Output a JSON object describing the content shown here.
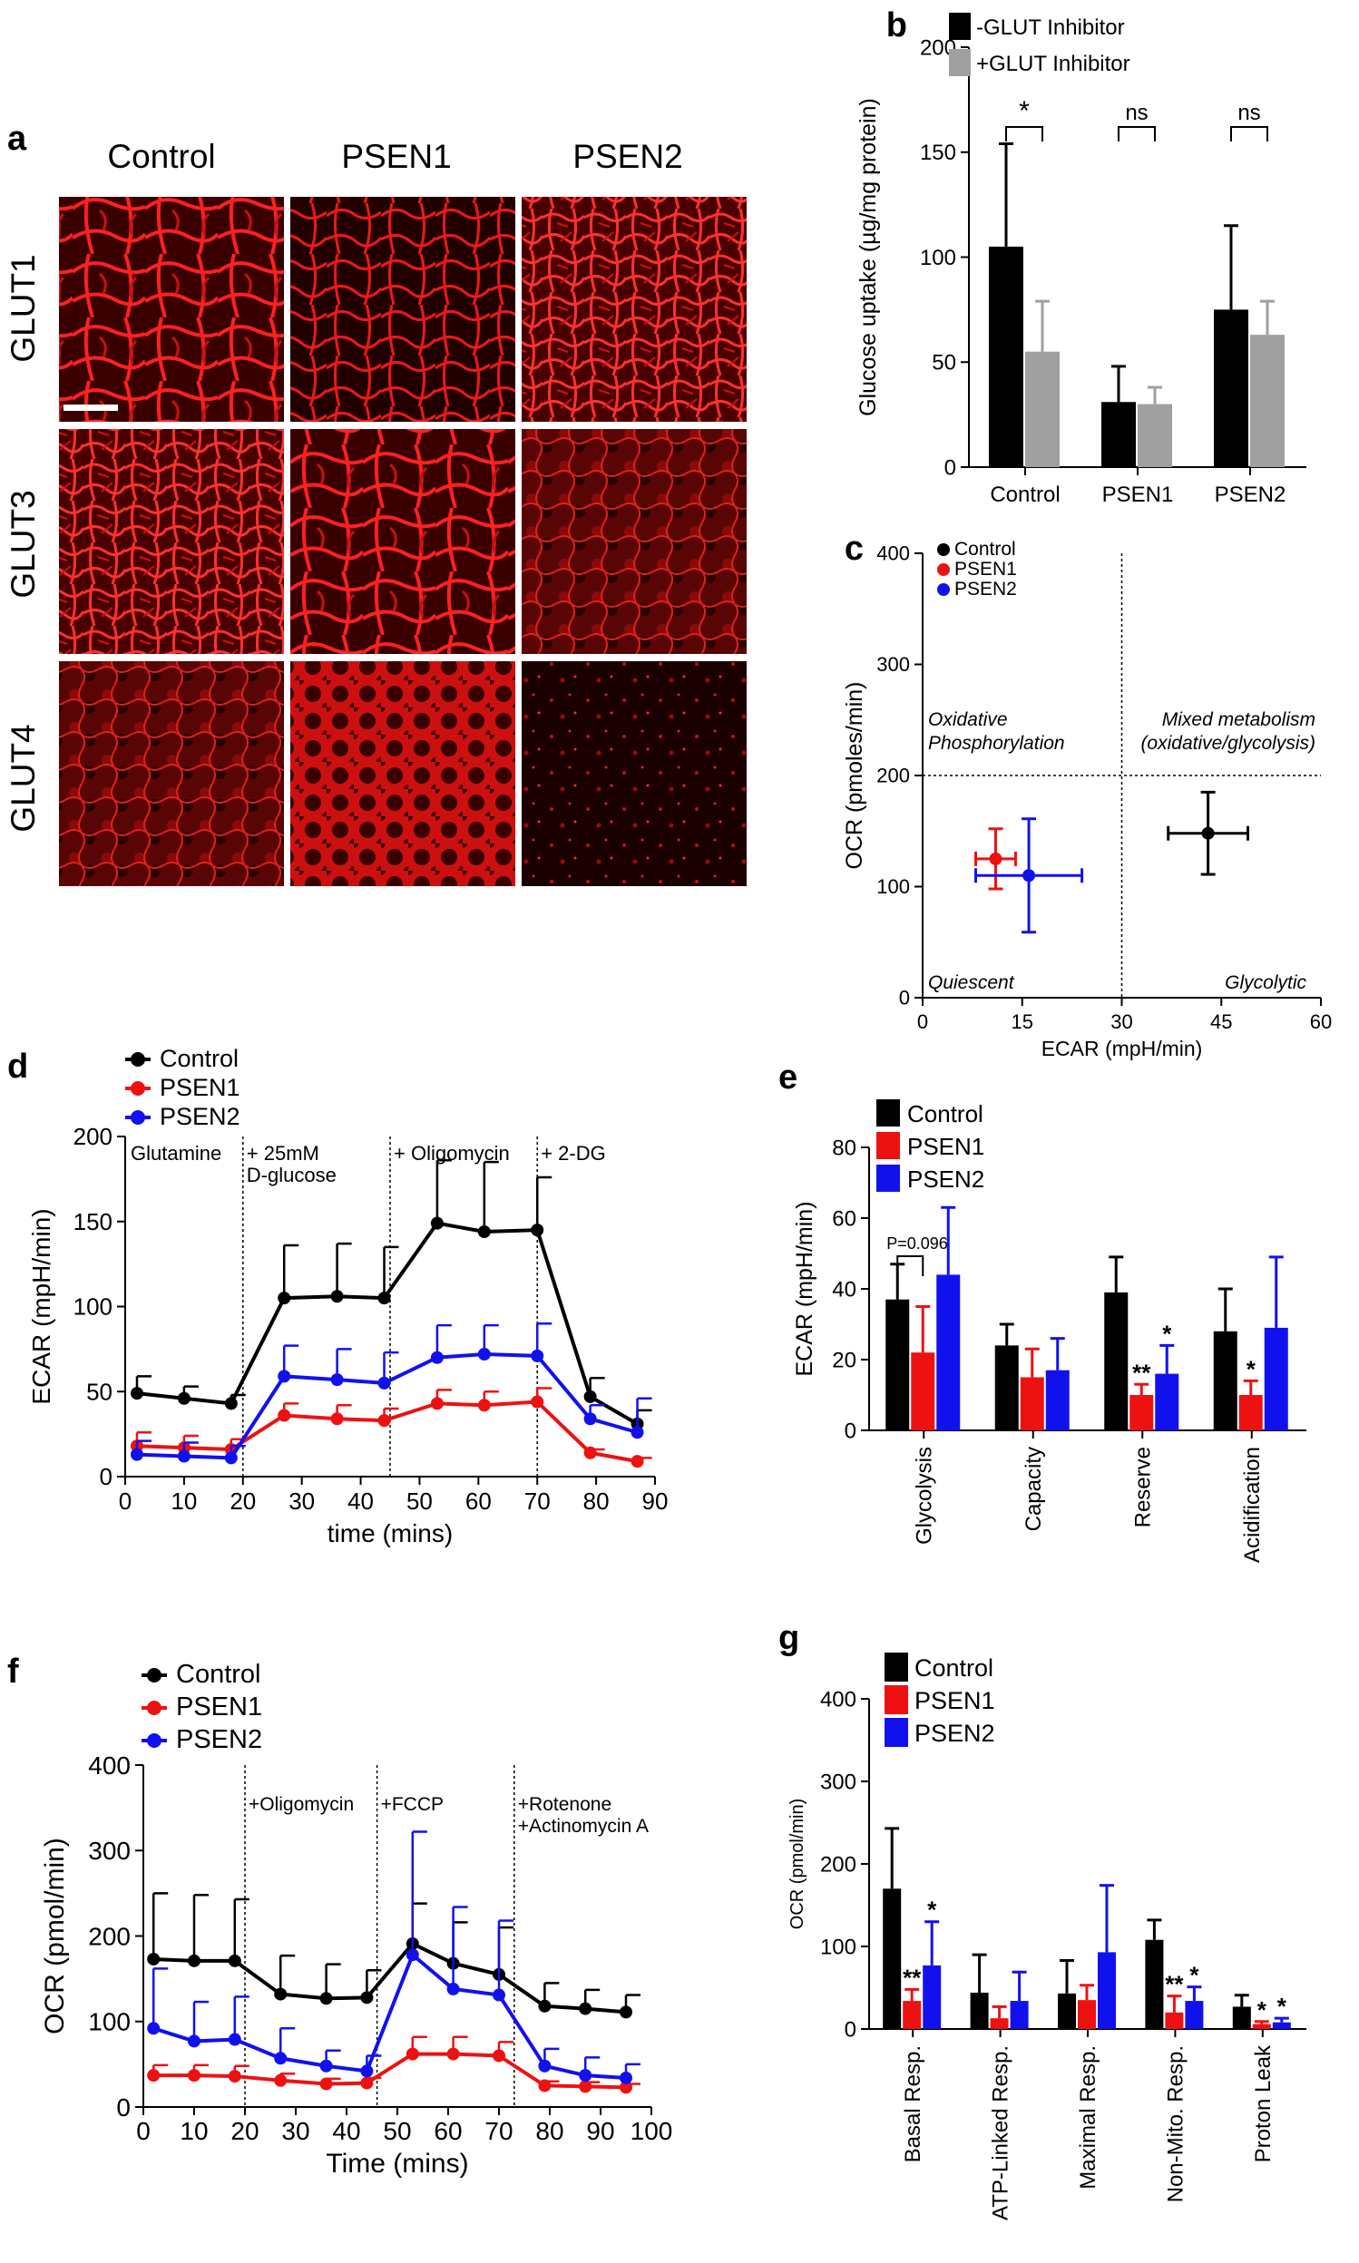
{
  "panels": {
    "a": {
      "label": "a",
      "columns": [
        "Control",
        "PSEN1",
        "PSEN2"
      ],
      "rows": [
        "GLUT1",
        "GLUT3",
        "GLUT4"
      ]
    }
  },
  "chart_data": [
    {
      "id": "b",
      "panel_label": "b",
      "type": "bar",
      "categories": [
        "Control",
        "PSEN1",
        "PSEN2"
      ],
      "series": [
        {
          "name": "-GLUT Inhibitor",
          "color": "#000000",
          "values": [
            105,
            31,
            75
          ],
          "errors": [
            49,
            17,
            40
          ]
        },
        {
          "name": "+GLUT Inhibitor",
          "color": "#a0a0a0",
          "values": [
            55,
            30,
            63
          ],
          "errors": [
            24,
            8,
            16
          ]
        }
      ],
      "ylabel": "Glucose uptake (µg/mg protein)",
      "xlabel": "",
      "ylim": [
        0,
        200
      ],
      "yticks": [
        0,
        50,
        100,
        150,
        200
      ],
      "annotations": [
        "*",
        "ns",
        "ns"
      ]
    },
    {
      "id": "c",
      "panel_label": "c",
      "type": "scatter",
      "series": [
        {
          "name": "Control",
          "color": "#000000",
          "x": 43,
          "y": 148,
          "xerr": 6,
          "yerr": 37
        },
        {
          "name": "PSEN1",
          "color": "#ee1111",
          "x": 11,
          "y": 125,
          "xerr": 3,
          "yerr": 27
        },
        {
          "name": "PSEN2",
          "color": "#1111ee",
          "x": 16,
          "y": 110,
          "xerr": 8,
          "yerr": 51
        }
      ],
      "xlabel": "ECAR (mpH/min)",
      "ylabel": "OCR (pmoles/min)",
      "xlim": [
        0,
        60
      ],
      "ylim": [
        0,
        400
      ],
      "xticks": [
        0,
        15,
        30,
        45,
        60
      ],
      "yticks": [
        0,
        100,
        200,
        300,
        400
      ],
      "quadrants": [
        "Oxidative",
        "Phosphorylation",
        "Mixed metabolism",
        "(oxidative/glycolysis)",
        "Quiescent",
        "Glycolytic"
      ]
    },
    {
      "id": "d",
      "panel_label": "d",
      "type": "line",
      "x": [
        2,
        10,
        18,
        27,
        36,
        44,
        53,
        61,
        70,
        79,
        87
      ],
      "series": [
        {
          "name": "Control",
          "color": "#000000",
          "values": [
            49,
            46,
            43,
            105,
            106,
            105,
            149,
            144,
            145,
            47,
            31
          ],
          "errors": [
            10,
            7,
            5,
            31,
            31,
            30,
            37,
            41,
            31,
            11,
            8
          ]
        },
        {
          "name": "PSEN1",
          "color": "#ee1111",
          "values": [
            18,
            17,
            16,
            36,
            34,
            33,
            43,
            42,
            44,
            14,
            9
          ],
          "errors": [
            8,
            7,
            6,
            7,
            8,
            7,
            8,
            8,
            8,
            2,
            2
          ]
        },
        {
          "name": "PSEN2",
          "color": "#1111ee",
          "values": [
            13,
            12,
            11,
            59,
            57,
            55,
            70,
            72,
            71,
            34,
            26
          ],
          "errors": [
            8,
            8,
            7,
            18,
            18,
            18,
            19,
            17,
            19,
            8,
            20
          ]
        }
      ],
      "xlabel": "time (mins)",
      "ylabel": "ECAR (mpH/min)",
      "xlim": [
        0,
        90
      ],
      "ylim": [
        0,
        200
      ],
      "xticks": [
        0,
        10,
        20,
        30,
        40,
        50,
        60,
        70,
        80,
        90
      ],
      "yticks": [
        0,
        50,
        100,
        150,
        200
      ],
      "events": [
        {
          "x": 20,
          "lines": [
            "+ 25mM",
            "D-glucose"
          ]
        },
        {
          "x": 45,
          "lines": [
            "+ Oligomycin"
          ]
        },
        {
          "x": 70,
          "lines": [
            "+ 2-DG"
          ]
        }
      ],
      "start_label": "Glutamine"
    },
    {
      "id": "e",
      "panel_label": "e",
      "type": "bar",
      "categories": [
        "Glycolysis",
        "Capacity",
        "Reserve",
        "Acidification"
      ],
      "series": [
        {
          "name": "Control",
          "color": "#000000",
          "values": [
            37,
            24,
            39,
            28
          ],
          "errors": [
            10,
            6,
            10,
            12
          ]
        },
        {
          "name": "PSEN1",
          "color": "#ee1111",
          "values": [
            22,
            15,
            10,
            10
          ],
          "errors": [
            13,
            8,
            3,
            4
          ]
        },
        {
          "name": "PSEN2",
          "color": "#1111ee",
          "values": [
            44,
            17,
            16,
            29
          ],
          "errors": [
            19,
            9,
            8,
            20
          ]
        }
      ],
      "ylabel": "ECAR (mpH/min)",
      "xlabel": "",
      "ylim": [
        0,
        80
      ],
      "yticks": [
        0,
        20,
        40,
        60,
        80
      ],
      "stars": [
        [
          "",
          "",
          ""
        ],
        [
          "",
          "",
          ""
        ],
        [
          "",
          "**",
          "*"
        ],
        [
          "",
          "*",
          ""
        ]
      ],
      "pvalue": "P=0.096"
    },
    {
      "id": "f",
      "panel_label": "f",
      "type": "line",
      "x": [
        2,
        10,
        18,
        27,
        36,
        44,
        53,
        61,
        70,
        79,
        87,
        95
      ],
      "series": [
        {
          "name": "Control",
          "color": "#000000",
          "values": [
            173,
            171,
            171,
            132,
            127,
            128,
            191,
            168,
            155,
            118,
            115,
            111
          ],
          "errors": [
            77,
            77,
            72,
            45,
            40,
            32,
            47,
            48,
            55,
            27,
            22,
            20
          ]
        },
        {
          "name": "PSEN1",
          "color": "#ee1111",
          "values": [
            37,
            37,
            36,
            31,
            27,
            28,
            62,
            62,
            60,
            25,
            24,
            23
          ],
          "errors": [
            12,
            12,
            12,
            8,
            6,
            6,
            20,
            20,
            16,
            5,
            5,
            4
          ]
        },
        {
          "name": "PSEN2",
          "color": "#1111ee",
          "values": [
            92,
            77,
            79,
            57,
            48,
            42,
            178,
            138,
            131,
            48,
            37,
            34
          ],
          "errors": [
            70,
            46,
            50,
            35,
            18,
            18,
            144,
            96,
            87,
            20,
            21,
            16
          ]
        }
      ],
      "xlabel": "Time (mins)",
      "ylabel": "OCR (pmol/min)",
      "xlim": [
        0,
        100
      ],
      "ylim": [
        0,
        400
      ],
      "xticks": [
        0,
        10,
        20,
        30,
        40,
        50,
        60,
        70,
        80,
        90,
        100
      ],
      "yticks": [
        0,
        100,
        200,
        300,
        400
      ],
      "events": [
        {
          "x": 20,
          "lines": [
            "+Oligomycin"
          ]
        },
        {
          "x": 46,
          "lines": [
            "+FCCP"
          ]
        },
        {
          "x": 73,
          "lines": [
            "+Rotenone",
            "+Actinomycin A"
          ]
        }
      ]
    },
    {
      "id": "g",
      "panel_label": "g",
      "type": "bar",
      "categories": [
        "Basal Resp.",
        "ATP-Linked Resp.",
        "Maximal Resp.",
        "Non-Mito. Resp.",
        "Proton Leak"
      ],
      "series": [
        {
          "name": "Control",
          "color": "#000000",
          "values": [
            170,
            44,
            43,
            108,
            27
          ],
          "errors": [
            73,
            46,
            40,
            24,
            14
          ]
        },
        {
          "name": "PSEN1",
          "color": "#ee1111",
          "values": [
            34,
            13,
            35,
            20,
            6
          ],
          "errors": [
            14,
            14,
            18,
            20,
            3
          ]
        },
        {
          "name": "PSEN2",
          "color": "#1111ee",
          "values": [
            77,
            34,
            93,
            34,
            8
          ],
          "errors": [
            53,
            35,
            81,
            17,
            5
          ]
        }
      ],
      "ylabel": "OCR (pmol/min)",
      "xlabel": "",
      "ylim": [
        0,
        400
      ],
      "yticks": [
        0,
        100,
        200,
        300,
        400
      ],
      "stars": [
        [
          "",
          "**",
          "*"
        ],
        [
          "",
          "",
          ""
        ],
        [
          "",
          "",
          ""
        ],
        [
          "",
          "**",
          "*"
        ],
        [
          "",
          "*",
          "*"
        ]
      ]
    }
  ]
}
